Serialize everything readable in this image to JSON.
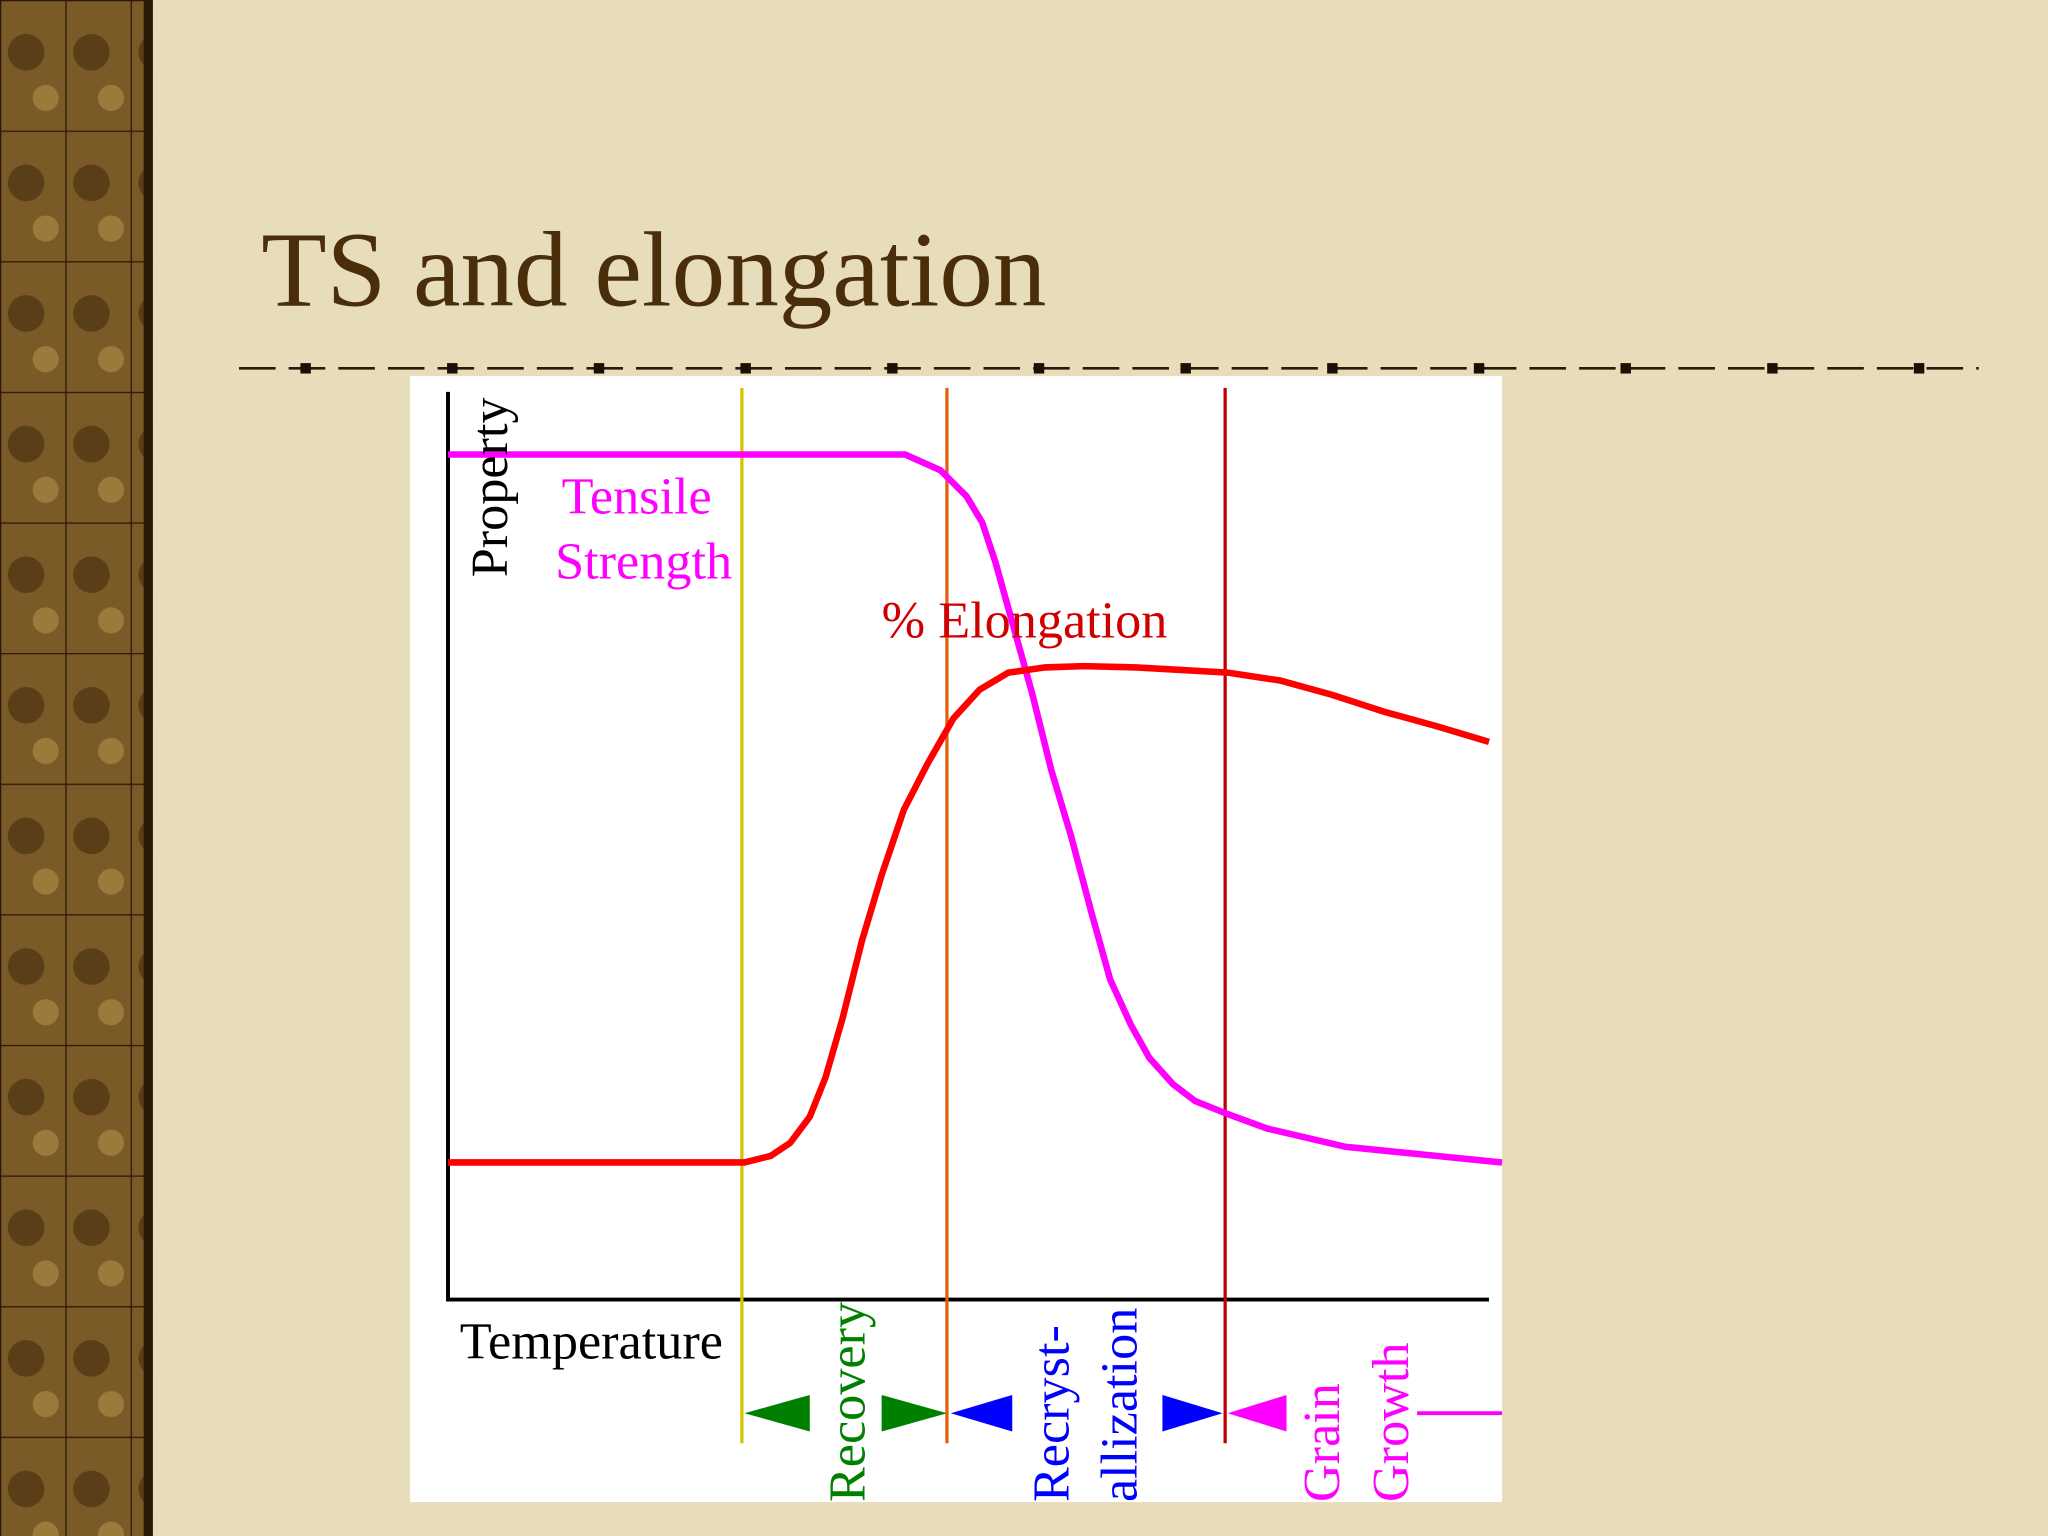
{
  "header": {
    "title": "TS and elongation"
  },
  "diagram": {
    "y_axis_label": "Property",
    "x_axis_label": "Temperature",
    "curves": [
      {
        "label_lines": [
          "Tensile",
          "Strength"
        ]
      },
      {
        "label_lines": [
          "% Elongation"
        ]
      }
    ],
    "stages": [
      {
        "label_lines": [
          "Recovery"
        ]
      },
      {
        "label_lines": [
          "Recryst-",
          "allization"
        ]
      },
      {
        "label_lines": [
          "Grain",
          "Growth"
        ]
      }
    ]
  }
}
